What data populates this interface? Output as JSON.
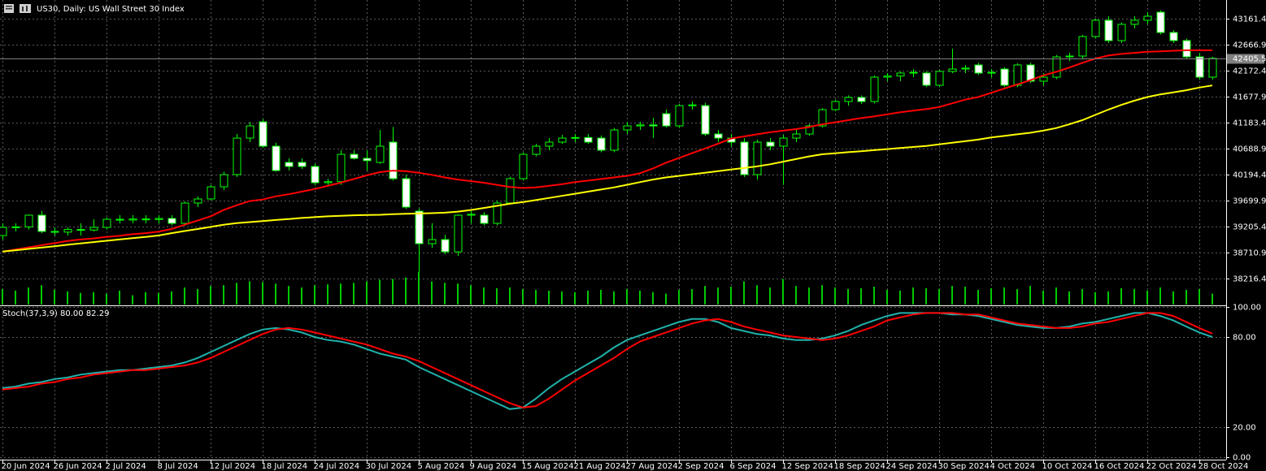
{
  "chart_data": [
    {
      "type": "candlestick",
      "title": "US30, Daily:  US Wall Street 30 Index",
      "categories": [
        "20 Jun 2024",
        null,
        null,
        null,
        "26 Jun 2024",
        null,
        null,
        null,
        "2 Jul 2024",
        null,
        null,
        null,
        "8 Jul 2024",
        null,
        null,
        null,
        "12 Jul 2024",
        null,
        null,
        null,
        "18 Jul 2024",
        null,
        null,
        null,
        "24 Jul 2024",
        null,
        null,
        null,
        "30 Jul 2024",
        null,
        null,
        null,
        "5 Aug 2024",
        null,
        null,
        null,
        "9 Aug 2024",
        null,
        null,
        null,
        "15 Aug 2024",
        null,
        null,
        null,
        "21 Aug 2024",
        null,
        null,
        null,
        "27 Aug 2024",
        null,
        null,
        null,
        "2 Sep 2024",
        null,
        null,
        null,
        "6 Sep 2024",
        null,
        null,
        null,
        "12 Sep 2024",
        null,
        null,
        null,
        "18 Sep 2024",
        null,
        null,
        null,
        "24 Sep 2024",
        null,
        null,
        null,
        "30 Sep 2024",
        null,
        null,
        null,
        "4 Oct 2024",
        null,
        null,
        null,
        "10 Oct 2024",
        null,
        null,
        null,
        "16 Oct 2024",
        null,
        null,
        null,
        "22 Oct 2024",
        null,
        null,
        null,
        "28 Oct 2024",
        null
      ],
      "open": [
        39035,
        39190,
        39200,
        39422,
        39113,
        39100,
        39150,
        39140,
        39190,
        39344,
        39330,
        39350,
        39340,
        39360,
        39267,
        39653,
        39731,
        39962,
        40194,
        40889,
        41198,
        40735,
        40426,
        40426,
        40349,
        40040,
        40060,
        40580,
        40503,
        40426,
        40812,
        40117,
        39499,
        38881,
        38958,
        38726,
        39422,
        39422,
        39267,
        39653,
        40117,
        40580,
        40735,
        40812,
        40889,
        40900,
        40889,
        40658,
        41044,
        41121,
        41140,
        41353,
        41121,
        41507,
        41507,
        40967,
        40889,
        40812,
        40194,
        40812,
        40735,
        40889,
        40967,
        41121,
        41430,
        41585,
        41662,
        41585,
        42048,
        42070,
        42126,
        42126,
        41894,
        42157,
        42203,
        42280,
        42126,
        42203,
        41894,
        42280,
        41971,
        42048,
        42434,
        42450,
        42821,
        43130,
        42744,
        43053,
        43130,
        43284,
        42898,
        42744,
        42434,
        42048
      ],
      "high": [
        39267,
        39267,
        39437,
        39499,
        39190,
        39190,
        39267,
        39344,
        39380,
        39422,
        39422,
        39422,
        39422,
        39422,
        39680,
        39780,
        40000,
        40250,
        40967,
        41198,
        41250,
        40800,
        40503,
        40503,
        40400,
        40117,
        40658,
        40658,
        40658,
        41044,
        41100,
        40190,
        39550,
        39267,
        39050,
        39440,
        39499,
        39480,
        39700,
        40150,
        40620,
        40780,
        40889,
        40950,
        40967,
        40967,
        40940,
        41080,
        41198,
        41198,
        41276,
        41430,
        41540,
        41585,
        41560,
        41044,
        40967,
        40889,
        40860,
        40889,
        40950,
        41044,
        41160,
        41460,
        41620,
        41700,
        41700,
        42080,
        42126,
        42160,
        42203,
        42160,
        42190,
        42589,
        42280,
        42320,
        42203,
        42240,
        42310,
        42320,
        42126,
        42470,
        42512,
        42850,
        43160,
        43207,
        43090,
        43207,
        43284,
        43320,
        42940,
        42780,
        42512,
        42434
      ],
      "low": [
        38958,
        39113,
        39150,
        39080,
        39035,
        39035,
        39035,
        39113,
        39150,
        39267,
        39267,
        39267,
        39267,
        39230,
        39220,
        39576,
        39700,
        39900,
        40150,
        40812,
        40700,
        40250,
        40271,
        40300,
        39990,
        39962,
        40000,
        40480,
        40271,
        40400,
        40080,
        39540,
        38340,
        38804,
        38680,
        38649,
        39267,
        39230,
        39230,
        39620,
        40080,
        40540,
        40658,
        40780,
        40812,
        40780,
        40620,
        40620,
        40967,
        41044,
        40889,
        41090,
        41080,
        41430,
        40930,
        40812,
        40735,
        40150,
        40100,
        40658,
        40000,
        40812,
        40930,
        41090,
        41400,
        41507,
        41540,
        41550,
        41971,
        41971,
        42048,
        41860,
        41860,
        42126,
        42126,
        42090,
        42048,
        41860,
        41860,
        41940,
        41894,
        42010,
        42357,
        42400,
        42780,
        42700,
        42700,
        42975,
        43053,
        42860,
        42700,
        42400,
        42000,
        42000
      ],
      "close": [
        39190,
        39200,
        39422,
        39113,
        39100,
        39150,
        39140,
        39190,
        39344,
        39330,
        39350,
        39340,
        39360,
        39267,
        39653,
        39731,
        39962,
        40194,
        40889,
        41121,
        40735,
        40271,
        40349,
        40349,
        40040,
        40060,
        40580,
        40503,
        40460,
        40735,
        40117,
        39576,
        38881,
        38958,
        38726,
        39422,
        39440,
        39267,
        39653,
        40117,
        40580,
        40735,
        40812,
        40889,
        40900,
        40812,
        40658,
        41044,
        41121,
        41140,
        41121,
        41121,
        41507,
        41520,
        40967,
        40889,
        40812,
        40194,
        40812,
        40735,
        40889,
        40967,
        41121,
        41430,
        41585,
        41662,
        41585,
        42048,
        42070,
        42126,
        42140,
        41894,
        42157,
        42203,
        42220,
        42126,
        42140,
        41894,
        42280,
        41971,
        42048,
        42434,
        42450,
        42821,
        43130,
        42744,
        43053,
        43130,
        43207,
        42898,
        42744,
        42434,
        42048,
        42405
      ],
      "up_color": "#000000",
      "down_color": "#ffffff",
      "wick_color": "#00ff00",
      "ylim": [
        37707,
        43516
      ],
      "yticks": [
        43161.4,
        42666.9,
        42172.4,
        41677.9,
        41183.4,
        40688.9,
        40194.4,
        39699.9,
        39205.4,
        38710.9,
        38216.4
      ],
      "grid": true,
      "last_price": 42405.5,
      "series": [
        {
          "color": "#ff0000",
          "values": [
            38730,
            38770,
            38810,
            38850,
            38890,
            38930,
            38960,
            38980,
            39010,
            39030,
            39060,
            39080,
            39110,
            39160,
            39240,
            39320,
            39400,
            39520,
            39610,
            39690,
            39720,
            39780,
            39820,
            39870,
            39920,
            39980,
            40040,
            40110,
            40180,
            40240,
            40270,
            40260,
            40230,
            40190,
            40140,
            40100,
            40070,
            40040,
            40000,
            39960,
            39940,
            39950,
            39980,
            40010,
            40050,
            40080,
            40110,
            40140,
            40170,
            40220,
            40310,
            40420,
            40510,
            40600,
            40690,
            40780,
            40880,
            40920,
            40960,
            41000,
            41030,
            41060,
            41100,
            41150,
            41190,
            41230,
            41270,
            41300,
            41340,
            41380,
            41410,
            41440,
            41480,
            41550,
            41620,
            41670,
            41750,
            41830,
            41910,
            41990,
            42080,
            42150,
            42230,
            42320,
            42400,
            42460,
            42490,
            42510,
            42530,
            42540,
            42550,
            42560,
            42560,
            42560
          ]
        },
        {
          "color": "#ffff00",
          "values": [
            38730,
            38755,
            38780,
            38805,
            38830,
            38860,
            38885,
            38910,
            38935,
            38960,
            38985,
            39010,
            39035,
            39080,
            39120,
            39160,
            39200,
            39240,
            39270,
            39290,
            39310,
            39330,
            39350,
            39370,
            39385,
            39400,
            39410,
            39420,
            39425,
            39430,
            39440,
            39450,
            39455,
            39460,
            39470,
            39490,
            39520,
            39560,
            39600,
            39640,
            39670,
            39710,
            39750,
            39790,
            39830,
            39870,
            39910,
            39950,
            40000,
            40050,
            40100,
            40140,
            40170,
            40200,
            40230,
            40260,
            40290,
            40320,
            40350,
            40390,
            40440,
            40490,
            40540,
            40580,
            40600,
            40620,
            40640,
            40660,
            40680,
            40700,
            40720,
            40740,
            40770,
            40800,
            40830,
            40860,
            40900,
            40930,
            40960,
            40990,
            41030,
            41080,
            41150,
            41230,
            41330,
            41430,
            41520,
            41600,
            41670,
            41720,
            41760,
            41800,
            41850,
            41890
          ]
        }
      ],
      "volume": {
        "color": "#00c800",
        "values": [
          20,
          18,
          22,
          25,
          19,
          17,
          15,
          16,
          14,
          18,
          12,
          16,
          15,
          17,
          22,
          20,
          24,
          25,
          28,
          30,
          29,
          27,
          24,
          22,
          25,
          26,
          27,
          28,
          30,
          32,
          33,
          35,
          42,
          30,
          28,
          27,
          25,
          22,
          21,
          22,
          20,
          19,
          18,
          17,
          16,
          18,
          19,
          17,
          20,
          18,
          16,
          14,
          19,
          20,
          24,
          22,
          23,
          30,
          25,
          22,
          33,
          24,
          22,
          25,
          22,
          20,
          21,
          23,
          19,
          18,
          22,
          21,
          20,
          24,
          23,
          19,
          21,
          22,
          20,
          24,
          18,
          22,
          17,
          20,
          16,
          17,
          21,
          20,
          18,
          22,
          17,
          19,
          20,
          14
        ]
      }
    },
    {
      "type": "line",
      "title": "Stoch(37,3,9) 80.00 82.29",
      "ylim": [
        0,
        100
      ],
      "yticks": [
        {
          "value": 100,
          "label": "100.00"
        },
        {
          "value": 80,
          "label": "80.00"
        },
        {
          "value": 20,
          "label": "20.00"
        },
        {
          "value": 0,
          "label": "0.00"
        }
      ],
      "grid": true,
      "series": [
        {
          "color": "#20b2aa",
          "values": [
            46,
            47,
            49,
            50,
            52,
            53,
            55,
            56,
            57,
            58,
            58,
            59,
            60,
            61,
            63,
            66,
            70,
            74,
            78,
            82,
            85,
            86,
            85,
            83,
            80,
            78,
            77,
            75,
            72,
            69,
            67,
            65,
            60,
            56,
            52,
            48,
            44,
            40,
            36,
            32,
            33,
            39,
            46,
            52,
            57,
            62,
            67,
            73,
            78,
            81,
            84,
            87,
            90,
            92,
            92,
            90,
            86,
            84,
            82,
            81,
            79,
            78,
            78,
            79,
            81,
            84,
            88,
            91,
            94,
            96,
            96,
            96,
            96,
            95,
            95,
            94,
            92,
            90,
            88,
            87,
            86,
            86,
            87,
            89,
            90,
            92,
            94,
            96,
            96,
            94,
            91,
            87,
            83,
            80
          ]
        },
        {
          "color": "#ff0000",
          "values": [
            45,
            46,
            47,
            49,
            50,
            52,
            53,
            55,
            56,
            57,
            58,
            58,
            59,
            60,
            61,
            63,
            66,
            70,
            74,
            78,
            82,
            85,
            86,
            85,
            83,
            81,
            79,
            77,
            75,
            72,
            69,
            67,
            64,
            60,
            56,
            52,
            48,
            44,
            40,
            36,
            33,
            34,
            39,
            45,
            51,
            56,
            61,
            66,
            72,
            77,
            80,
            83,
            86,
            89,
            91,
            92,
            90,
            87,
            85,
            83,
            81,
            80,
            79,
            78,
            79,
            81,
            84,
            87,
            91,
            93,
            95,
            96,
            96,
            96,
            95,
            95,
            93,
            91,
            89,
            88,
            87,
            86,
            86,
            87,
            89,
            90,
            92,
            94,
            96,
            96,
            94,
            90,
            86,
            82.29
          ]
        }
      ]
    }
  ]
}
